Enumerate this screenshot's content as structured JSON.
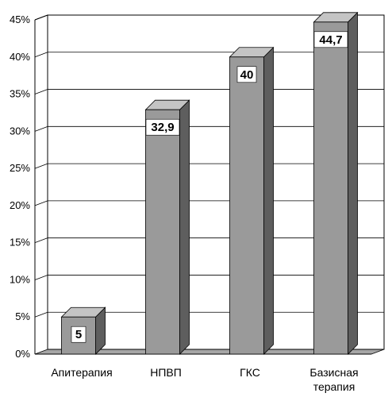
{
  "chart_data": {
    "type": "bar",
    "style": "3d-column",
    "categories": [
      "Апитерапия",
      "НПВП",
      "ГКС",
      "Базисная терапия"
    ],
    "category_lines": [
      [
        "Апитерапия"
      ],
      [
        "НПВП"
      ],
      [
        "ГКС"
      ],
      [
        "Базисная",
        "терапия"
      ]
    ],
    "values": [
      5,
      32.9,
      40,
      44.7
    ],
    "data_labels": [
      "5",
      "32,9",
      "40",
      "44,7"
    ],
    "title": "",
    "xlabel": "",
    "ylabel": "",
    "ylim": [
      0,
      45
    ],
    "yticks": [
      "0%",
      "5%",
      "10%",
      "15%",
      "20%",
      "25%",
      "30%",
      "35%",
      "40%",
      "45%"
    ],
    "grid": true,
    "legend": "none",
    "colors": {
      "bar_front": "#9a9a9a",
      "bar_top": "#c4c4c4",
      "bar_side": "#5e5e5e",
      "floor": "#a6a6a6",
      "grid": "#000000",
      "label_box": "#ffffff"
    }
  }
}
